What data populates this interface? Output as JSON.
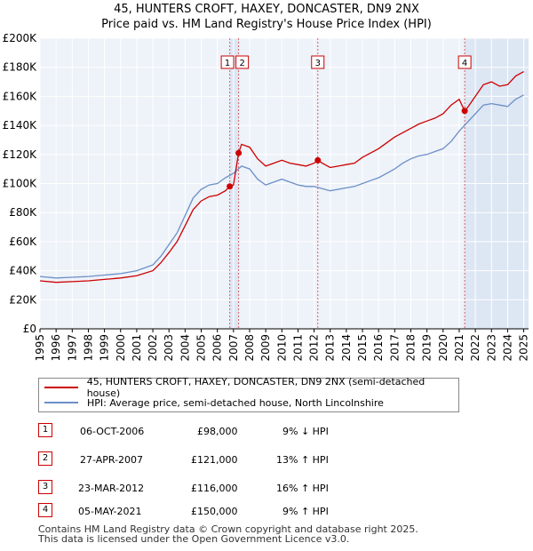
{
  "header": {
    "title": "45, HUNTERS CROFT, HAXEY, DONCASTER, DN9 2NX",
    "subtitle": "Price paid vs. HM Land Registry's House Price Index (HPI)"
  },
  "legend": {
    "property_label": "45, HUNTERS CROFT, HAXEY, DONCASTER, DN9 2NX (semi-detached house)",
    "hpi_label": "HPI: Average price, semi-detached house, North Lincolnshire"
  },
  "sales": [
    {
      "num": "1",
      "date": "06-OCT-2006",
      "price": "£98,000",
      "hpi": "9% ↓ HPI"
    },
    {
      "num": "2",
      "date": "27-APR-2007",
      "price": "£121,000",
      "hpi": "13% ↑ HPI"
    },
    {
      "num": "3",
      "date": "23-MAR-2012",
      "price": "£116,000",
      "hpi": "16% ↑ HPI"
    },
    {
      "num": "4",
      "date": "05-MAY-2021",
      "price": "£150,000",
      "hpi": "9% ↑ HPI"
    }
  ],
  "footer": {
    "line1": "Contains HM Land Registry data © Crown copyright and database right 2025.",
    "line2": "This data is licensed under the Open Government Licence v3.0."
  },
  "colors": {
    "property": "#cc0000",
    "hpi": "#6a8fc7",
    "shade": "#dde6f3",
    "grid": "#ffffff",
    "plot_bg": "#eef2f9"
  },
  "chart_data": {
    "type": "line",
    "title": "45, HUNTERS CROFT, HAXEY, DONCASTER, DN9 2NX",
    "subtitle": "Price paid vs. HM Land Registry's House Price Index (HPI)",
    "xlabel": "",
    "ylabel": "",
    "xlim": [
      1995,
      2025.3
    ],
    "ylim": [
      0,
      200000
    ],
    "x_ticks": [
      1995,
      1996,
      1997,
      1998,
      1999,
      2000,
      2001,
      2002,
      2003,
      2004,
      2005,
      2006,
      2007,
      2008,
      2009,
      2010,
      2011,
      2012,
      2013,
      2014,
      2015,
      2016,
      2017,
      2018,
      2019,
      2020,
      2021,
      2022,
      2023,
      2024,
      2025
    ],
    "y_ticks": [
      0,
      20000,
      40000,
      60000,
      80000,
      100000,
      120000,
      140000,
      160000,
      180000,
      200000
    ],
    "y_tick_labels": [
      "£0",
      "£20K",
      "£40K",
      "£60K",
      "£80K",
      "£100K",
      "£120K",
      "£140K",
      "£160K",
      "£180K",
      "£200K"
    ],
    "shaded_spans": [
      [
        2006.77,
        2007.32
      ],
      [
        2021.34,
        2025.3
      ]
    ],
    "series": [
      {
        "name": "HPI: Average price, semi-detached house, North Lincolnshire",
        "x": [
          1995,
          1996,
          1997,
          1998,
          1999,
          2000,
          2001,
          2002,
          2002.5,
          2003,
          2003.5,
          2004,
          2004.5,
          2005,
          2005.5,
          2006,
          2006.5,
          2007,
          2007.5,
          2008,
          2008.5,
          2009,
          2009.5,
          2010,
          2010.5,
          2011,
          2011.5,
          2012,
          2012.5,
          2013,
          2013.5,
          2014,
          2014.5,
          2015,
          2015.5,
          2016,
          2016.5,
          2017,
          2017.5,
          2018,
          2018.5,
          2019,
          2019.5,
          2020,
          2020.5,
          2021,
          2021.5,
          2022,
          2022.5,
          2023,
          2023.5,
          2024,
          2024.5,
          2025
        ],
        "values": [
          36000,
          35000,
          35500,
          36000,
          37000,
          38000,
          40000,
          44000,
          50000,
          58000,
          66000,
          78000,
          90000,
          96000,
          99000,
          100000,
          104000,
          107000,
          112000,
          110000,
          103000,
          99000,
          101000,
          103000,
          101000,
          99000,
          98000,
          98000,
          96500,
          95000,
          96000,
          97000,
          98000,
          100000,
          102000,
          104000,
          107000,
          110000,
          114000,
          117000,
          119000,
          120000,
          122000,
          124000,
          129000,
          136000,
          142000,
          148000,
          154000,
          155000,
          154000,
          153000,
          158000,
          161000
        ]
      },
      {
        "name": "45, HUNTERS CROFT, HAXEY, DONCASTER, DN9 2NX (semi-detached house)",
        "x": [
          1995,
          1996,
          1997,
          1998,
          1999,
          2000,
          2001,
          2002,
          2002.5,
          2003,
          2003.5,
          2004,
          2004.5,
          2005,
          2005.5,
          2006,
          2006.5,
          2006.77,
          2007.0,
          2007.32,
          2007.5,
          2008,
          2008.5,
          2009,
          2009.5,
          2010,
          2010.5,
          2011,
          2011.5,
          2012,
          2012.23,
          2012.5,
          2013,
          2013.5,
          2014,
          2014.5,
          2015,
          2015.5,
          2016,
          2016.5,
          2017,
          2017.5,
          2018,
          2018.5,
          2019,
          2019.5,
          2020,
          2020.5,
          2021,
          2021.34,
          2021.5,
          2022,
          2022.5,
          2023,
          2023.5,
          2024,
          2024.5,
          2025
        ],
        "values": [
          33000,
          32000,
          32500,
          33000,
          34000,
          35000,
          36500,
          40000,
          45500,
          52500,
          60000,
          71000,
          82000,
          88000,
          91000,
          92000,
          95000,
          98000,
          99000,
          121000,
          127000,
          125000,
          117000,
          112000,
          114000,
          116000,
          114000,
          113000,
          112000,
          114000,
          116000,
          114000,
          111000,
          112000,
          113000,
          114000,
          118000,
          121000,
          124000,
          128000,
          132000,
          135000,
          138000,
          141000,
          143000,
          145000,
          148000,
          154000,
          158000,
          150000,
          152000,
          160000,
          168000,
          170000,
          167000,
          168000,
          174000,
          177000
        ]
      }
    ],
    "sale_markers": [
      {
        "label": "1",
        "x": 2006.77,
        "value": 98000
      },
      {
        "label": "2",
        "x": 2007.32,
        "value": 121000
      },
      {
        "label": "3",
        "x": 2012.23,
        "value": 116000
      },
      {
        "label": "4",
        "x": 2021.34,
        "value": 150000
      }
    ],
    "marker_boxes": [
      {
        "label": "1",
        "x": 2006.85
      },
      {
        "label": "2",
        "x": 2007.32
      },
      {
        "label": "3",
        "x": 2012.23
      },
      {
        "label": "4",
        "x": 2021.34
      }
    ]
  }
}
